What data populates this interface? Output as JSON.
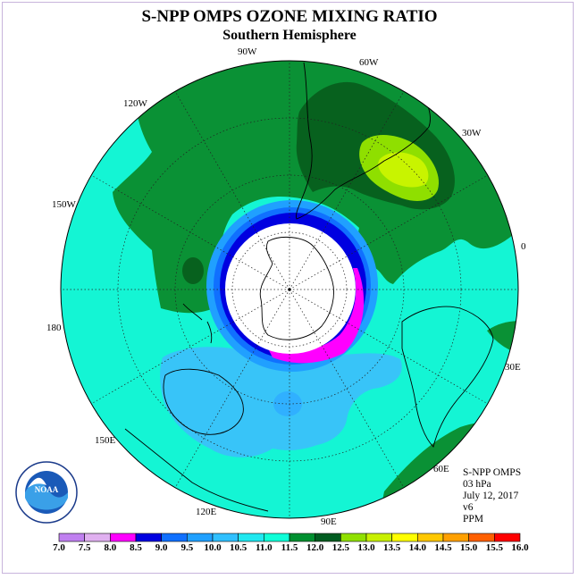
{
  "title": "S-NPP OMPS OZONE MIXING RATIO",
  "subtitle": "Southern Hemisphere",
  "lon_labels": {
    "w90": "90W",
    "w60": "60W",
    "w30": "30W",
    "lon0": "0",
    "e30": "30E",
    "e60": "60E",
    "e90": "90E",
    "e120": "120E",
    "e150": "150E",
    "lon180": "180",
    "w150": "150W",
    "w120": "120W"
  },
  "info": {
    "instrument": "S-NPP OMPS",
    "level": "03 hPa",
    "date": "July 12, 2017",
    "version": "v6",
    "units": "PPM"
  },
  "logo": {
    "text": "NOAA"
  },
  "colorbar": {
    "labels": [
      "7.0",
      "7.5",
      "8.0",
      "8.5",
      "9.0",
      "9.5",
      "10.0",
      "10.5",
      "11.0",
      "11.5",
      "12.0",
      "12.5",
      "13.0",
      "13.5",
      "14.0",
      "14.5",
      "15.0",
      "15.5",
      "16.0"
    ],
    "colors": [
      "#c080f0",
      "#e0b0f0",
      "#ff00ff",
      "#0000e0",
      "#1070ff",
      "#20a0ff",
      "#30c0ff",
      "#20e8f0",
      "#10ffd8",
      "#009030",
      "#005c20",
      "#90e000",
      "#c8f000",
      "#ffff00",
      "#ffc800",
      "#ffa000",
      "#ff6000",
      "#ff0000",
      "#8b4513"
    ]
  },
  "colors": {
    "cyan_green": "#14f5d4",
    "light_blue": "#38c4f8",
    "mid_green": "#0a9135",
    "dark_green": "#07611e",
    "lime": "#8fdf00",
    "yellow_green": "#c8f400"
  }
}
